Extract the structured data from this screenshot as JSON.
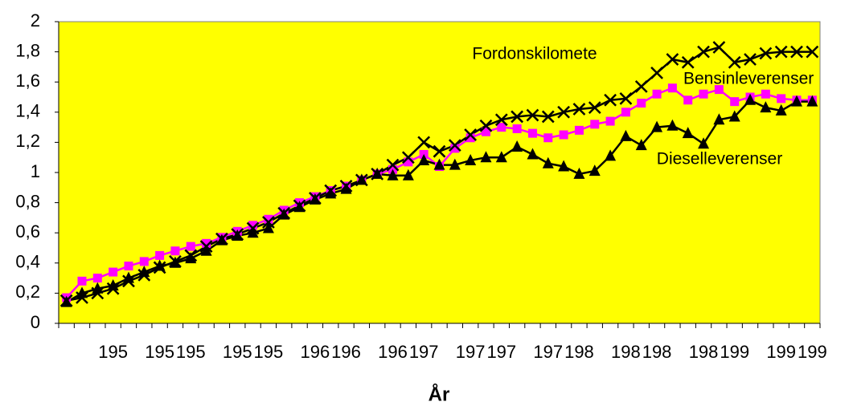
{
  "chart_data": {
    "type": "line",
    "x_label": "År",
    "categories": [
      null,
      null,
      null,
      "195",
      null,
      null,
      "195",
      null,
      "195",
      null,
      null,
      "195",
      null,
      "195",
      null,
      null,
      "196",
      null,
      "196",
      null,
      null,
      "196",
      null,
      "197",
      null,
      null,
      "197",
      null,
      "197",
      null,
      null,
      "197",
      null,
      "198",
      null,
      null,
      "198",
      null,
      "198",
      null,
      null,
      "198",
      null,
      "199",
      null,
      null,
      "199",
      null,
      "199"
    ],
    "ylim": [
      0,
      2
    ],
    "yticks": [
      0,
      {
        "value": 0.2,
        "label": "0,2"
      },
      {
        "value": 0.4,
        "label": "0,4"
      },
      {
        "value": 0.6,
        "label": "0,6"
      },
      {
        "value": 0.8,
        "label": "0,8"
      },
      1,
      {
        "value": 1.2,
        "label": "1,2"
      },
      {
        "value": 1.4,
        "label": "1,4"
      },
      {
        "value": 1.6,
        "label": "1,6"
      },
      {
        "value": 1.8,
        "label": "1,8"
      },
      2
    ],
    "background": "#ffff00",
    "series": [
      {
        "name": "Bensinleverenser",
        "color": "#ff00ff",
        "marker": "square",
        "values": [
          0.17,
          0.28,
          0.3,
          0.34,
          0.38,
          0.41,
          0.45,
          0.48,
          0.51,
          0.53,
          0.57,
          0.61,
          0.65,
          0.69,
          0.75,
          0.8,
          0.84,
          0.88,
          0.91,
          0.95,
          0.99,
          1.02,
          1.07,
          1.12,
          1.04,
          1.16,
          1.23,
          1.27,
          1.3,
          1.29,
          1.26,
          1.23,
          1.25,
          1.28,
          1.32,
          1.34,
          1.4,
          1.46,
          1.52,
          1.56,
          1.48,
          1.52,
          1.55,
          1.47,
          1.5,
          1.52,
          1.49,
          1.48,
          1.48
        ]
      },
      {
        "name": "Fordonskilomete",
        "color": "#000000",
        "marker": "x",
        "values": [
          0.15,
          0.17,
          0.2,
          0.23,
          0.28,
          0.32,
          0.37,
          0.41,
          0.45,
          0.51,
          0.56,
          0.59,
          0.63,
          0.67,
          0.73,
          0.78,
          0.83,
          0.88,
          0.91,
          0.95,
          0.99,
          1.05,
          1.1,
          1.2,
          1.14,
          1.18,
          1.25,
          1.31,
          1.35,
          1.37,
          1.38,
          1.37,
          1.4,
          1.42,
          1.43,
          1.48,
          1.49,
          1.57,
          1.66,
          1.75,
          1.73,
          1.8,
          1.83,
          1.73,
          1.75,
          1.79,
          1.8,
          1.8,
          1.8
        ]
      },
      {
        "name": "Dieselleverenser",
        "color": "#000000",
        "marker": "triangle",
        "values": [
          0.14,
          0.2,
          0.23,
          0.25,
          0.3,
          0.34,
          0.38,
          0.4,
          0.43,
          0.48,
          0.55,
          0.58,
          0.6,
          0.63,
          0.72,
          0.77,
          0.82,
          0.86,
          0.89,
          0.95,
          0.99,
          0.98,
          0.98,
          1.08,
          1.05,
          1.05,
          1.08,
          1.1,
          1.1,
          1.17,
          1.12,
          1.06,
          1.04,
          0.99,
          1.01,
          1.11,
          1.24,
          1.18,
          1.3,
          1.31,
          1.26,
          1.19,
          1.35,
          1.37,
          1.48,
          1.43,
          1.41,
          1.47,
          1.47
        ]
      }
    ]
  }
}
